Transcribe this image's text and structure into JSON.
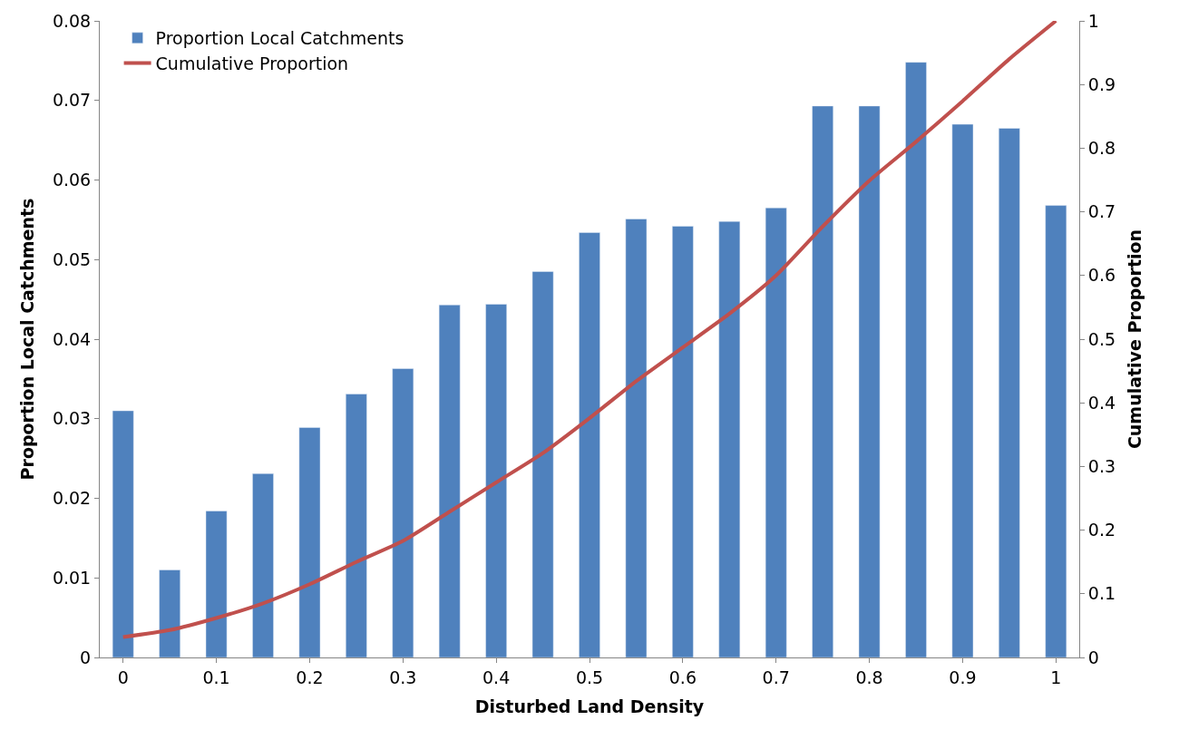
{
  "chart_data": {
    "type": "bar",
    "xlabel": "Disturbed Land Density",
    "ylabel": "Proportion Local Catchments",
    "y2label": "Cumulative Proportion",
    "categories": [
      "0",
      null,
      "0.1",
      null,
      "0.2",
      null,
      "0.3",
      null,
      "0.4",
      null,
      "0.5",
      null,
      "0.6",
      null,
      "0.7",
      null,
      "0.8",
      null,
      "0.9",
      null,
      "1"
    ],
    "series": [
      {
        "name": "Proportion Local Catchments",
        "color": "#4f81bd",
        "values": [
          0.031,
          0.011,
          0.0184,
          0.0231,
          0.0289,
          0.0331,
          0.0363,
          0.0443,
          0.0444,
          0.0485,
          0.0534,
          0.0551,
          0.0542,
          0.0548,
          0.0565,
          0.0693,
          0.0693,
          0.0748,
          0.067,
          0.0665,
          0.0568
        ]
      },
      {
        "name": "Cumulative Proportion",
        "type": "line",
        "axis": "y2",
        "color": "#c0504d",
        "values": [
          0.032,
          0.043,
          0.062,
          0.085,
          0.115,
          0.15,
          0.183,
          0.229,
          0.275,
          0.321,
          0.376,
          0.434,
          0.487,
          0.54,
          0.6,
          0.677,
          0.749,
          0.81,
          0.874,
          0.94,
          1.0
        ]
      }
    ],
    "ylim": [
      0,
      0.08
    ],
    "yticks": [
      0,
      0.01,
      0.02,
      0.03,
      0.04,
      0.05,
      0.06,
      0.07,
      0.08
    ],
    "y2lim": [
      0,
      1
    ],
    "y2ticks": [
      0,
      0.1,
      0.2,
      0.3,
      0.4,
      0.5,
      0.6,
      0.7,
      0.8,
      0.9,
      1
    ],
    "legend": "top left",
    "marker": "none",
    "line_style": "solid"
  }
}
